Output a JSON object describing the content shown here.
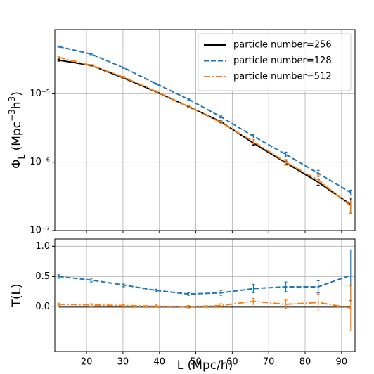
{
  "chart_data": [
    {
      "type": "line",
      "yscale": "log",
      "grid": true,
      "legend": "upper right",
      "xtick_labels": false,
      "ylabel": [
        {
          "text": "Φ"
        },
        {
          "text": "L",
          "script": "sub"
        },
        {
          "text": " ("
        },
        {
          "text": "Mpc"
        },
        {
          "text": "−3",
          "script": "sup"
        },
        {
          "text": "h"
        },
        {
          "text": "3",
          "script": "sup"
        },
        {
          "text": ")"
        }
      ],
      "x": [
        12.4,
        21.3,
        30.2,
        39.1,
        48.0,
        56.9,
        65.8,
        74.7,
        83.6,
        92.5
      ],
      "xlim": [
        11.3,
        93.7
      ],
      "xticks": [
        20,
        30,
        40,
        50,
        60,
        70,
        80,
        90
      ],
      "ylim": [
        1e-07,
        8.7e-05
      ],
      "yticks": [
        {
          "value": 1e-07,
          "label": "10⁻⁷"
        },
        {
          "value": 1e-06,
          "label": "10⁻⁶"
        },
        {
          "value": 1e-05,
          "label": "10⁻⁵"
        }
      ],
      "series": [
        {
          "name": "particle number=256",
          "color": "#000000",
          "linestyle": "solid",
          "values": [
            3.1e-05,
            2.6e-05,
            1.7e-05,
            1.07e-05,
            6.5e-06,
            3.9e-06,
            1.9e-06,
            9.8e-07,
            5.1e-07,
            2.4e-07
          ],
          "errors": [
            1e-06,
            6e-07,
            4e-07,
            2.5e-07,
            1.5e-07,
            1e-07,
            1.2e-07,
            6e-08,
            5e-08,
            6e-08
          ]
        },
        {
          "name": "particle number=128",
          "color": "#1f77b4",
          "linestyle": "dashed",
          "values": [
            4.9e-05,
            3.8e-05,
            2.4e-05,
            1.4e-05,
            8.3e-06,
            4.6e-06,
            2.4e-06,
            1.3e-06,
            6.9e-07,
            3.6e-07
          ],
          "errors": [
            1e-06,
            8e-07,
            5e-07,
            3e-07,
            2e-07,
            1.5e-07,
            1.5e-07,
            1e-07,
            7e-08,
            3e-08
          ]
        },
        {
          "name": "particle number=512",
          "color": "#ff7f0e",
          "linestyle": "dashdot",
          "values": [
            3.4e-05,
            2.6e-05,
            1.75e-05,
            1.08e-05,
            6.5e-06,
            3.8e-06,
            2e-06,
            1e-06,
            5.5e-07,
            2.3e-07
          ],
          "errors": [
            1e-06,
            8e-07,
            5e-07,
            3e-07,
            2e-07,
            1.5e-07,
            1.5e-07,
            1e-07,
            1e-07,
            5e-08
          ]
        }
      ]
    },
    {
      "type": "line",
      "yscale": "linear",
      "grid": true,
      "xtick_labels": true,
      "xlabel": "L (Mpc/h)",
      "ylabel": [
        {
          "text": "T(L)"
        }
      ],
      "x": [
        12.4,
        21.3,
        30.2,
        39.1,
        48.0,
        56.9,
        65.8,
        74.7,
        83.6,
        92.5
      ],
      "xlim": [
        11.3,
        93.7
      ],
      "xticks": [
        20,
        30,
        40,
        50,
        60,
        70,
        80,
        90
      ],
      "ylim": [
        -0.74,
        1.12
      ],
      "yticks": [
        {
          "value": 0,
          "label": "0.0"
        },
        {
          "value": 0.5,
          "label": "0.5"
        },
        {
          "value": 1,
          "label": "1.0"
        }
      ],
      "series": [
        {
          "color": "#000000",
          "linestyle": "solid",
          "values": [
            0,
            0,
            0,
            0,
            0,
            0,
            0,
            0,
            0,
            0
          ]
        },
        {
          "color": "#1f77b4",
          "linestyle": "dashed",
          "values": [
            0.5,
            0.44,
            0.36,
            0.27,
            0.21,
            0.23,
            0.3,
            0.33,
            0.33,
            0.52
          ],
          "errors": [
            0.03,
            0.03,
            0.03,
            0.02,
            0.02,
            0.04,
            0.07,
            0.08,
            0.1,
            0.42
          ]
        },
        {
          "color": "#ff7f0e",
          "linestyle": "dashdot",
          "values": [
            0.04,
            0.03,
            0.02,
            0.01,
            0.0,
            0.02,
            0.09,
            0.04,
            0.07,
            -0.02
          ],
          "errors": [
            0.02,
            0.02,
            0.02,
            0.02,
            0.02,
            0.03,
            0.05,
            0.07,
            0.14,
            0.37
          ]
        }
      ]
    }
  ]
}
